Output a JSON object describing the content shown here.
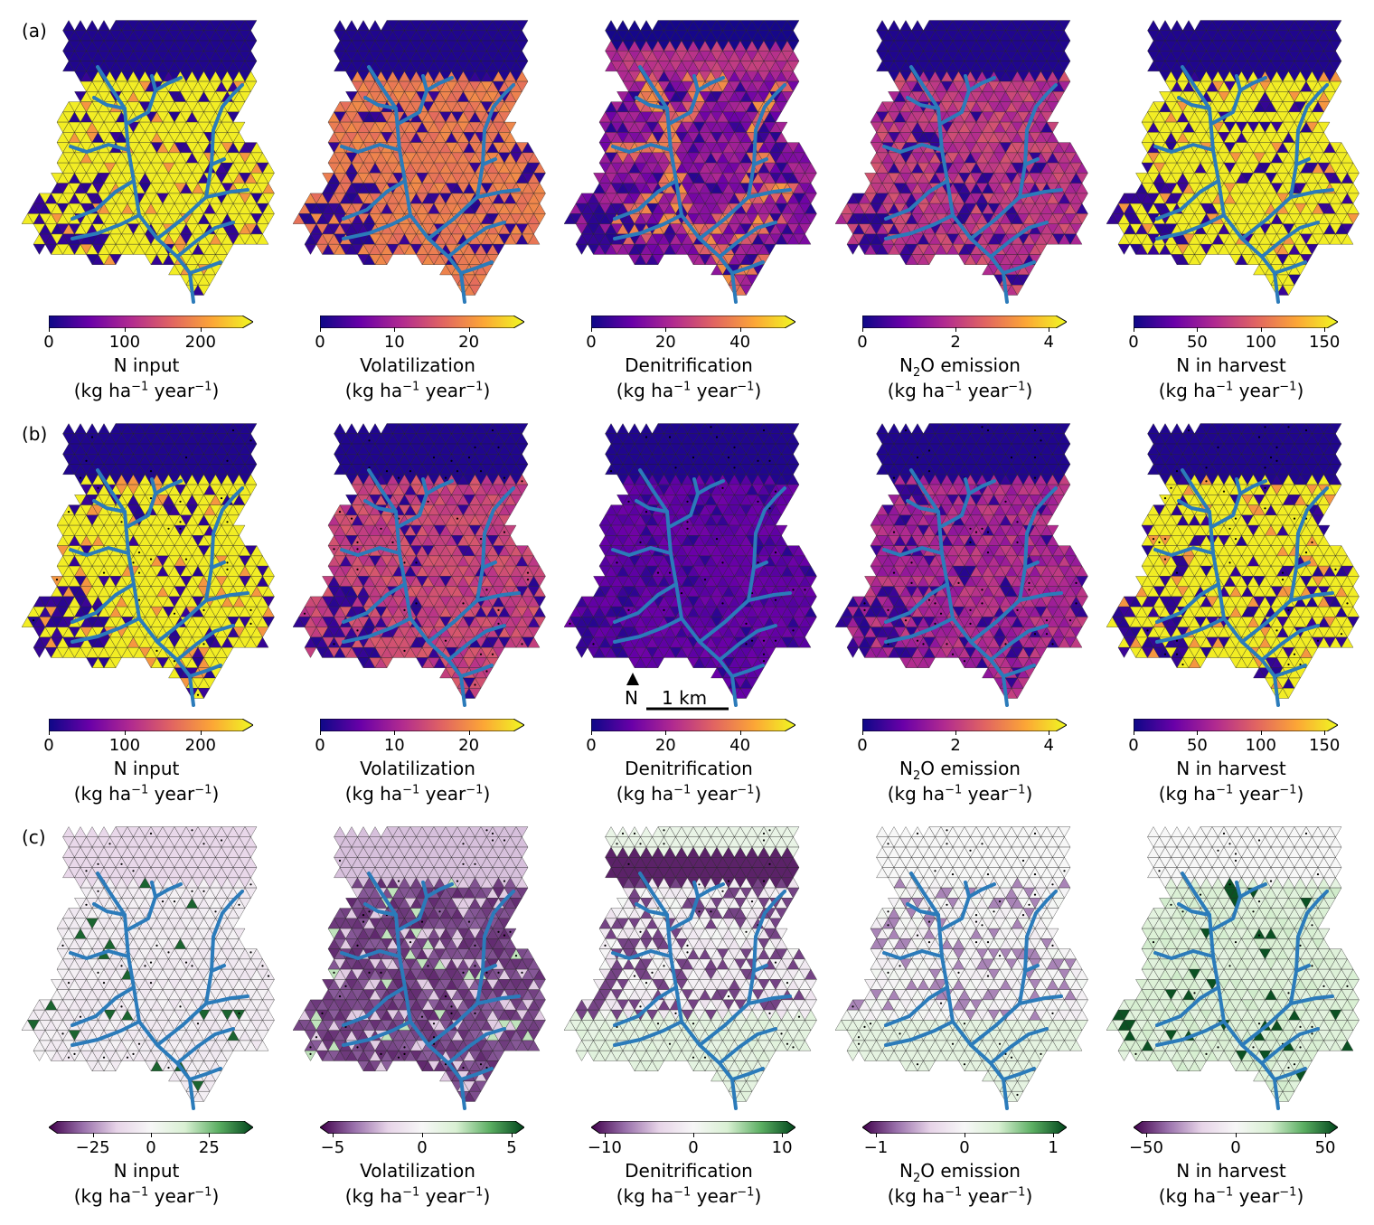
{
  "rows": [
    {
      "label": "(a)",
      "map_style": "seq_a"
    },
    {
      "label": "(b)",
      "map_style": "seq_b"
    },
    {
      "label": "(c)",
      "map_style": "div"
    }
  ],
  "variables": [
    {
      "name": "N input",
      "ticks_seq": [
        "0",
        "100",
        "200"
      ],
      "tick_vals_seq": [
        0,
        100,
        200
      ],
      "max_seq": 255,
      "ticks_div": [
        "−25",
        "0",
        "25"
      ],
      "tick_vals_div": [
        -25,
        0,
        25
      ],
      "max_div": 40
    },
    {
      "name": "Volatilization",
      "ticks_seq": [
        "0",
        "10",
        "20"
      ],
      "tick_vals_seq": [
        0,
        10,
        20
      ],
      "max_seq": 26,
      "ticks_div": [
        "−5",
        "0",
        "5"
      ],
      "tick_vals_div": [
        -5,
        0,
        5
      ],
      "max_div": 5.2
    },
    {
      "name": "Denitrification",
      "ticks_seq": [
        "0",
        "20",
        "40"
      ],
      "tick_vals_seq": [
        0,
        20,
        40
      ],
      "max_seq": 52,
      "ticks_div": [
        "−10",
        "0",
        "10"
      ],
      "tick_vals_div": [
        -10,
        0,
        10
      ],
      "max_div": 10.5
    },
    {
      "name": "N2O emission",
      "name_main": "N",
      "name_sub": "2",
      "name_rest": "O emission",
      "ticks_seq": [
        "0",
        "2",
        "4"
      ],
      "tick_vals_seq": [
        0,
        2,
        4
      ],
      "max_seq": 4.15,
      "ticks_div": [
        "−1",
        "0",
        "1"
      ],
      "tick_vals_div": [
        -1,
        0,
        1
      ],
      "max_div": 1.05
    },
    {
      "name": "N in harvest",
      "ticks_seq": [
        "0",
        "50",
        "100",
        "150"
      ],
      "tick_vals_seq": [
        0,
        50,
        100,
        150
      ],
      "max_seq": 152,
      "ticks_div": [
        "−50",
        "0",
        "50"
      ],
      "tick_vals_div": [
        -50,
        0,
        50
      ],
      "max_div": 52
    }
  ],
  "units": {
    "pre": "(kg ha",
    "sup1": "−1",
    "mid": " year",
    "sup2": "−1",
    "post": ")"
  },
  "scalebar": {
    "north": "N",
    "length_label": "1 km"
  },
  "colors": {
    "plasma": [
      "#0d0887",
      "#6a00a8",
      "#b12a90",
      "#e16462",
      "#fca636",
      "#f0f921"
    ],
    "diverging": [
      "#40004b",
      "#9970ab",
      "#e7d4e8",
      "#f7f7f7",
      "#d9f0d3",
      "#5aae61",
      "#00441b"
    ],
    "river": "#2b7bba"
  }
}
